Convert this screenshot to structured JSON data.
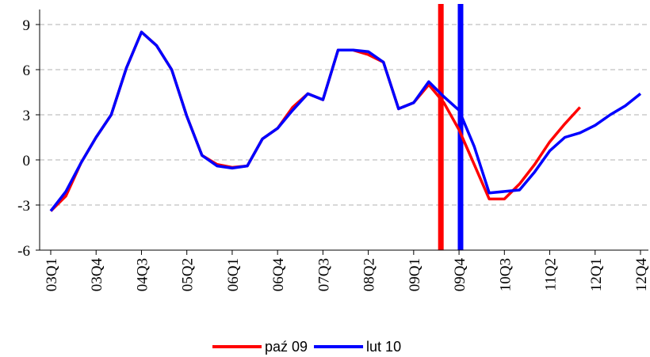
{
  "chart_data": {
    "type": "line",
    "categories": [
      "03Q1",
      null,
      null,
      "03Q4",
      null,
      null,
      "04Q3",
      null,
      null,
      "05Q2",
      null,
      null,
      "06Q1",
      null,
      null,
      "06Q4",
      null,
      null,
      "07Q3",
      null,
      null,
      "08Q2",
      null,
      null,
      "09Q1",
      null,
      null,
      "09Q4",
      null,
      null,
      "10Q3",
      null,
      null,
      "11Q2",
      null,
      null,
      "12Q1",
      null,
      null,
      "12Q4"
    ],
    "series": [
      {
        "name": "paź 09",
        "color": "#ff0000",
        "values": [
          -3.4,
          -2.4,
          -0.2,
          1.5,
          3.0,
          6.1,
          8.5,
          7.6,
          6.0,
          2.9,
          0.3,
          -0.3,
          -0.5,
          -0.4,
          1.4,
          2.1,
          3.5,
          4.4,
          4.0,
          7.3,
          7.3,
          7.0,
          6.5,
          3.4,
          3.8,
          5.0,
          3.8,
          2.0,
          -0.3,
          -2.6,
          -2.6,
          -1.6,
          -0.3,
          1.2,
          2.4,
          3.5,
          null,
          null,
          null,
          null
        ]
      },
      {
        "name": "lut 10",
        "color": "#0000ff",
        "values": [
          -3.4,
          -2.1,
          -0.2,
          1.5,
          3.0,
          6.1,
          8.5,
          7.6,
          6.0,
          2.9,
          0.3,
          -0.4,
          -0.55,
          -0.4,
          1.4,
          2.1,
          3.3,
          4.4,
          4.0,
          7.3,
          7.3,
          7.2,
          6.5,
          3.4,
          3.8,
          5.2,
          4.2,
          3.3,
          0.9,
          -2.2,
          -2.1,
          -2.0,
          -0.8,
          0.6,
          1.5,
          1.8,
          2.3,
          3.0,
          3.6,
          4.4
        ]
      }
    ],
    "vlines": [
      {
        "index": 25.8,
        "color": "#ff0000"
      },
      {
        "index": 27.1,
        "color": "#0000ff"
      }
    ],
    "ylim": [
      -6,
      10
    ],
    "yticks": [
      -6,
      -3,
      0,
      3,
      6,
      9
    ],
    "grid": true,
    "legend": "bottom"
  }
}
